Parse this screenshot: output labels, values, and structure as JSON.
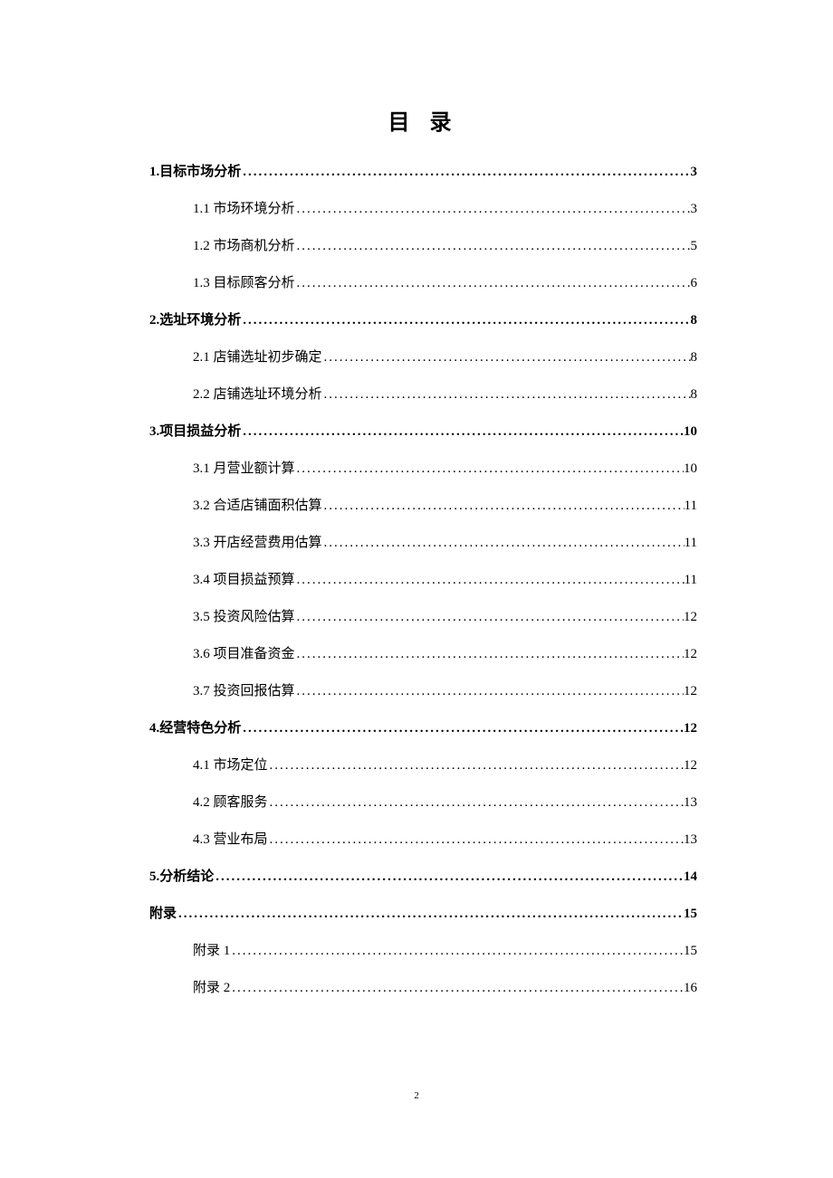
{
  "title": "目 录",
  "page_number": "2",
  "text_color": "#000000",
  "background_color": "#ffffff",
  "font_family": "SimSun, 宋体, serif",
  "title_fontsize": 24,
  "body_fontsize": 15,
  "dot_char": ".",
  "toc": [
    {
      "level": 1,
      "label": "1.目标市场分析",
      "page": "3"
    },
    {
      "level": 2,
      "label": "1.1 市场环境分析",
      "page": "3"
    },
    {
      "level": 2,
      "label": "1.2 市场商机分析",
      "page": "5"
    },
    {
      "level": 2,
      "label": "1.3 目标顾客分析",
      "page": "6"
    },
    {
      "level": 1,
      "label": "2.选址环境分析",
      "page": "8"
    },
    {
      "level": 2,
      "label": "2.1 店铺选址初步确定",
      "page": "8"
    },
    {
      "level": 2,
      "label": "2.2 店铺选址环境分析",
      "page": "8"
    },
    {
      "level": 1,
      "label": "3.项目损益分析",
      "page": "10"
    },
    {
      "level": 2,
      "label": "3.1 月营业额计算",
      "page": "10"
    },
    {
      "level": 2,
      "label": "3.2 合适店铺面积估算",
      "page": "11"
    },
    {
      "level": 2,
      "label": "3.3  开店经营费用估算",
      "page": "11"
    },
    {
      "level": 2,
      "label": "3.4  项目损益预算",
      "page": "11"
    },
    {
      "level": 2,
      "label": "3.5 投资风险估算",
      "page": "12"
    },
    {
      "level": 2,
      "label": "3.6 项目准备资金",
      "page": "12"
    },
    {
      "level": 2,
      "label": "3.7 投资回报估算",
      "page": "12"
    },
    {
      "level": 1,
      "label": "4.经营特色分析",
      "page": "12"
    },
    {
      "level": 2,
      "label": "4.1 市场定位",
      "page": "12"
    },
    {
      "level": 2,
      "label": "4.2 顾客服务",
      "page": "13"
    },
    {
      "level": 2,
      "label": "4.3 营业布局",
      "page": "13"
    },
    {
      "level": 1,
      "label": "5.分析结论",
      "page": "14"
    },
    {
      "level": 1,
      "label": "附录",
      "page": "15"
    },
    {
      "level": 2,
      "label": "附录 1",
      "page": "15"
    },
    {
      "level": 2,
      "label": "附录 2",
      "page": "16"
    }
  ]
}
